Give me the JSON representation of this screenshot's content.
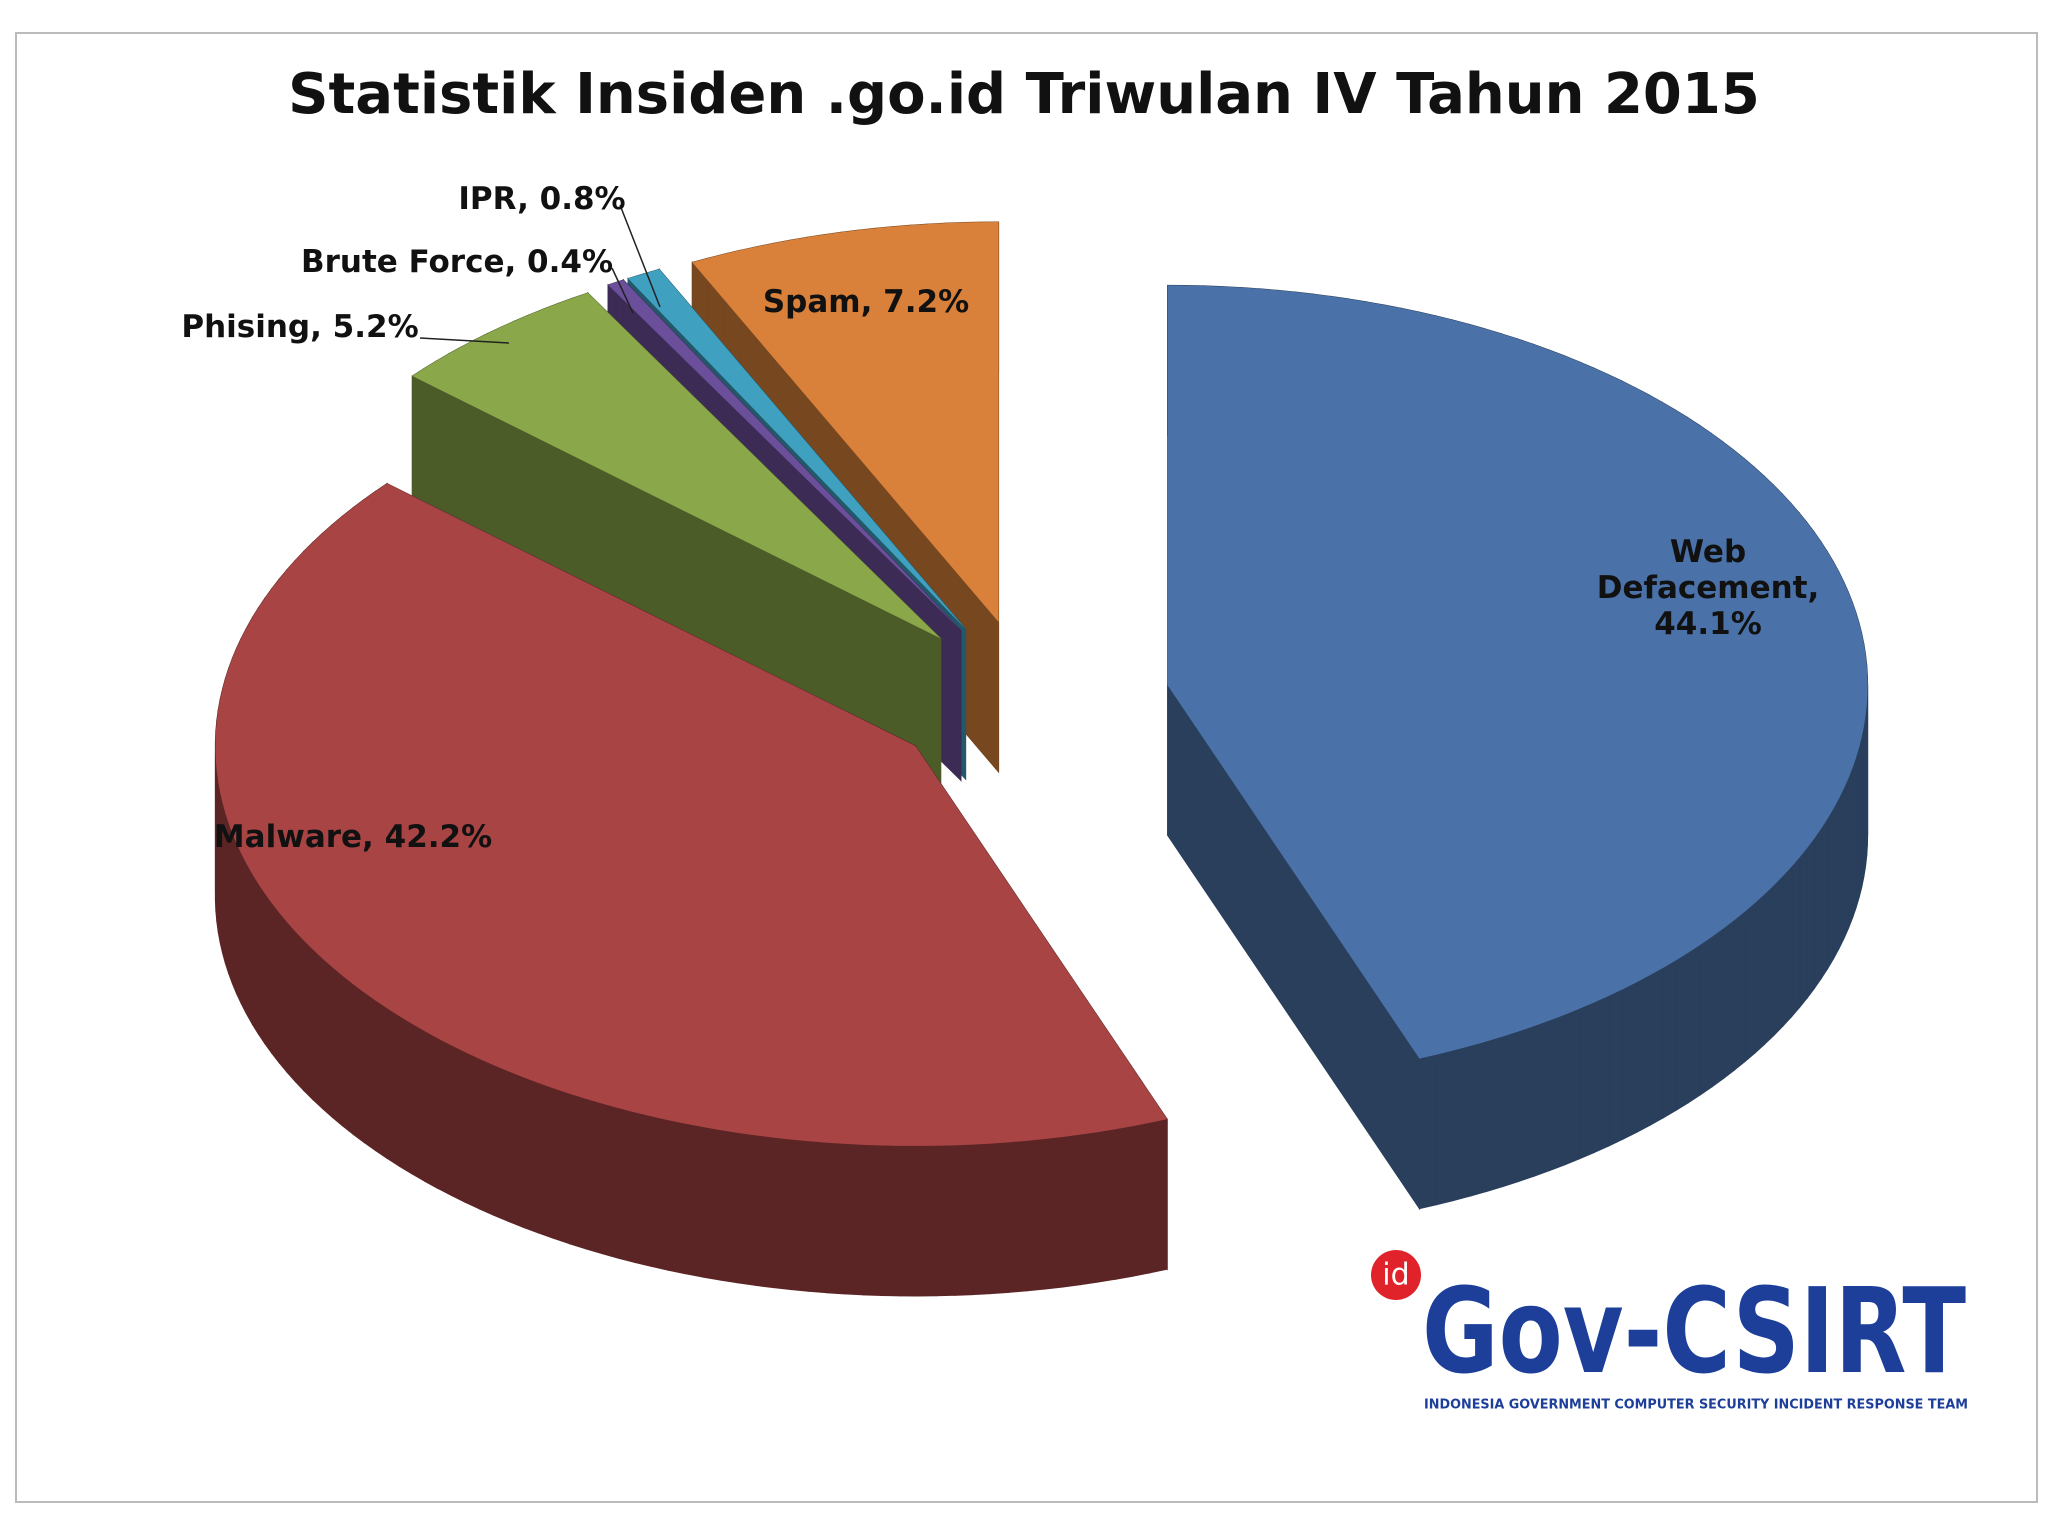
{
  "chart_data": {
    "type": "pie",
    "title": "Statistik Insiden .go.id Triwulan IV Tahun 2015",
    "values": [
      44.1,
      42.2,
      5.2,
      0.4,
      0.8,
      7.2
    ],
    "value_labels": [
      "Web Defacement, 44.1%",
      "Malware, 42.2%",
      "Phising,  5.2%",
      "Brute Force, 0.4%",
      "IPR, 0.8%",
      "Spam, 7.2%"
    ],
    "colors": [
      "#4a72a8",
      "#a84444",
      "#8aa84a",
      "#6b4f9a",
      "#3fa0c0",
      "#d9813a"
    ]
  },
  "logo": {
    "badge": "id",
    "name": "Gov-CSIRT",
    "tagline": "INDONESIA GOVERNMENT COMPUTER SECURITY INCIDENT RESPONSE TEAM"
  }
}
